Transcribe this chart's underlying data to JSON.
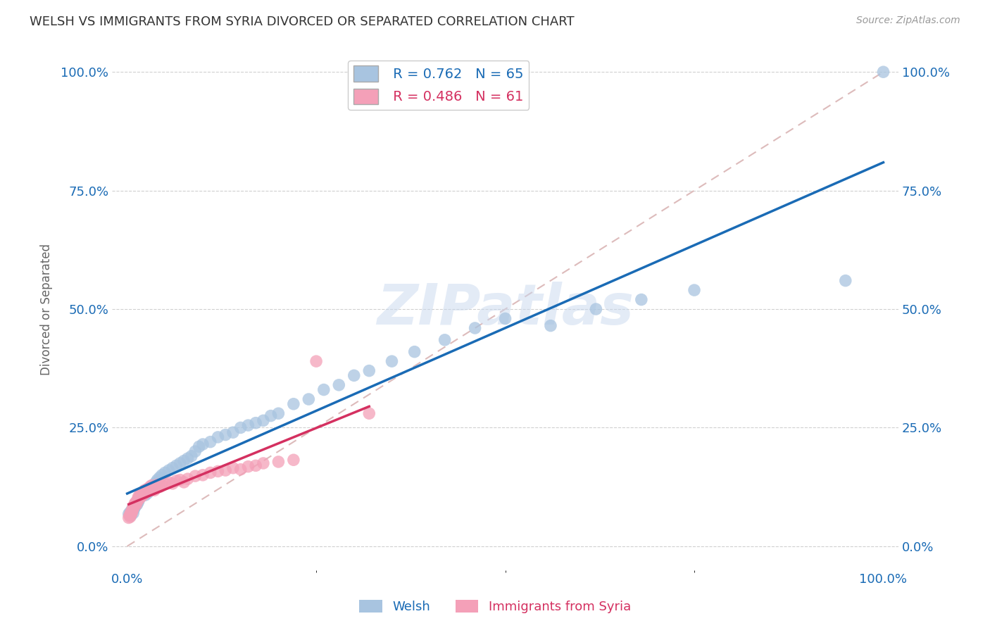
{
  "title": "WELSH VS IMMIGRANTS FROM SYRIA DIVORCED OR SEPARATED CORRELATION CHART",
  "source": "Source: ZipAtlas.com",
  "ylabel": "Divorced or Separated",
  "xlim": [
    -0.02,
    1.02
  ],
  "ylim": [
    -0.05,
    1.05
  ],
  "xtick_positions": [
    0.0,
    1.0
  ],
  "xtick_labels": [
    "0.0%",
    "100.0%"
  ],
  "ytick_positions": [
    0.0,
    0.25,
    0.5,
    0.75,
    1.0
  ],
  "ytick_labels": [
    "0.0%",
    "25.0%",
    "50.0%",
    "75.0%",
    "100.0%"
  ],
  "grid_color": "#d0d0d0",
  "background_color": "#ffffff",
  "watermark": "ZIPatlas",
  "welsh_color": "#a8c4e0",
  "welsh_line_color": "#1a6bb5",
  "welsh_R": 0.762,
  "welsh_N": 65,
  "syria_color": "#f4a0b8",
  "syria_line_color": "#d43060",
  "syria_R": 0.486,
  "syria_N": 61,
  "welsh_x": [
    0.002,
    0.004,
    0.005,
    0.006,
    0.007,
    0.008,
    0.009,
    0.01,
    0.011,
    0.012,
    0.013,
    0.014,
    0.015,
    0.016,
    0.018,
    0.02,
    0.022,
    0.024,
    0.025,
    0.027,
    0.03,
    0.033,
    0.035,
    0.038,
    0.04,
    0.043,
    0.046,
    0.05,
    0.055,
    0.06,
    0.065,
    0.07,
    0.075,
    0.08,
    0.085,
    0.09,
    0.095,
    0.1,
    0.11,
    0.12,
    0.13,
    0.14,
    0.15,
    0.16,
    0.17,
    0.18,
    0.19,
    0.2,
    0.22,
    0.24,
    0.26,
    0.28,
    0.3,
    0.32,
    0.35,
    0.38,
    0.42,
    0.46,
    0.5,
    0.56,
    0.62,
    0.68,
    0.75,
    0.95,
    1.0
  ],
  "welsh_y": [
    0.068,
    0.072,
    0.065,
    0.075,
    0.08,
    0.07,
    0.078,
    0.082,
    0.085,
    0.09,
    0.088,
    0.092,
    0.095,
    0.1,
    0.105,
    0.11,
    0.115,
    0.108,
    0.118,
    0.112,
    0.12,
    0.125,
    0.13,
    0.135,
    0.14,
    0.145,
    0.15,
    0.155,
    0.16,
    0.165,
    0.17,
    0.175,
    0.18,
    0.185,
    0.19,
    0.2,
    0.21,
    0.215,
    0.22,
    0.23,
    0.235,
    0.24,
    0.25,
    0.255,
    0.26,
    0.265,
    0.275,
    0.28,
    0.3,
    0.31,
    0.33,
    0.34,
    0.36,
    0.37,
    0.39,
    0.41,
    0.435,
    0.46,
    0.48,
    0.465,
    0.5,
    0.52,
    0.54,
    0.56,
    1.0
  ],
  "syria_x": [
    0.002,
    0.003,
    0.004,
    0.005,
    0.005,
    0.006,
    0.007,
    0.007,
    0.008,
    0.008,
    0.009,
    0.01,
    0.01,
    0.011,
    0.012,
    0.013,
    0.014,
    0.015,
    0.015,
    0.016,
    0.017,
    0.018,
    0.019,
    0.02,
    0.021,
    0.022,
    0.023,
    0.024,
    0.025,
    0.026,
    0.027,
    0.028,
    0.03,
    0.032,
    0.034,
    0.036,
    0.038,
    0.04,
    0.043,
    0.046,
    0.05,
    0.055,
    0.06,
    0.065,
    0.07,
    0.075,
    0.08,
    0.09,
    0.1,
    0.11,
    0.12,
    0.13,
    0.14,
    0.15,
    0.16,
    0.17,
    0.18,
    0.2,
    0.22,
    0.25,
    0.32
  ],
  "syria_y": [
    0.06,
    0.065,
    0.062,
    0.068,
    0.072,
    0.07,
    0.075,
    0.078,
    0.08,
    0.082,
    0.085,
    0.088,
    0.09,
    0.092,
    0.088,
    0.095,
    0.1,
    0.098,
    0.105,
    0.102,
    0.108,
    0.11,
    0.105,
    0.112,
    0.108,
    0.115,
    0.118,
    0.112,
    0.115,
    0.12,
    0.118,
    0.122,
    0.125,
    0.128,
    0.122,
    0.118,
    0.125,
    0.13,
    0.125,
    0.128,
    0.132,
    0.135,
    0.132,
    0.138,
    0.14,
    0.135,
    0.142,
    0.148,
    0.15,
    0.155,
    0.158,
    0.16,
    0.165,
    0.162,
    0.168,
    0.17,
    0.175,
    0.178,
    0.182,
    0.39,
    0.28
  ]
}
